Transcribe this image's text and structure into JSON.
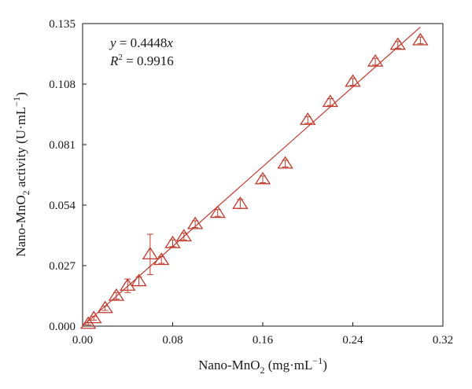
{
  "chart_data": {
    "type": "scatter",
    "title": "",
    "xlabel_parts": [
      "Nano-MnO",
      "2",
      " (mg·mL",
      "−1",
      ")"
    ],
    "ylabel_parts": [
      "Nano-MnO",
      "2",
      " activity (U·mL",
      "−1",
      ")"
    ],
    "xlim": [
      0.0,
      0.32
    ],
    "ylim": [
      0.0,
      0.135
    ],
    "xticks": [
      0.0,
      0.08,
      0.16,
      0.24,
      0.32
    ],
    "xtick_labels": [
      "0.00",
      "0.08",
      "0.16",
      "0.24",
      "0.32"
    ],
    "yticks": [
      0.0,
      0.027,
      0.054,
      0.081,
      0.108,
      0.135
    ],
    "ytick_labels": [
      "0.000",
      "0.027",
      "0.054",
      "0.081",
      "0.108",
      "0.135"
    ],
    "grid": false,
    "legend": "none",
    "marker": "open-triangle",
    "color": "#c0392b",
    "points": [
      {
        "x": 0.005,
        "y": 0.001,
        "err": 0.0005
      },
      {
        "x": 0.01,
        "y": 0.0035,
        "err": 0.0008
      },
      {
        "x": 0.02,
        "y": 0.008,
        "err": 0.001
      },
      {
        "x": 0.03,
        "y": 0.0135,
        "err": 0.0015
      },
      {
        "x": 0.04,
        "y": 0.018,
        "err": 0.003
      },
      {
        "x": 0.05,
        "y": 0.02,
        "err": 0.002
      },
      {
        "x": 0.06,
        "y": 0.032,
        "err": 0.009
      },
      {
        "x": 0.07,
        "y": 0.0295,
        "err": 0.0015
      },
      {
        "x": 0.08,
        "y": 0.037,
        "err": 0.0015
      },
      {
        "x": 0.09,
        "y": 0.04,
        "err": 0.0015
      },
      {
        "x": 0.1,
        "y": 0.0455,
        "err": 0.0015
      },
      {
        "x": 0.12,
        "y": 0.0505,
        "err": 0.0015
      },
      {
        "x": 0.14,
        "y": 0.0545,
        "err": 0.002
      },
      {
        "x": 0.16,
        "y": 0.0655,
        "err": 0.0015
      },
      {
        "x": 0.18,
        "y": 0.0725,
        "err": 0.0015
      },
      {
        "x": 0.2,
        "y": 0.092,
        "err": 0.0015
      },
      {
        "x": 0.22,
        "y": 0.1,
        "err": 0.0015
      },
      {
        "x": 0.24,
        "y": 0.109,
        "err": 0.0015
      },
      {
        "x": 0.26,
        "y": 0.118,
        "err": 0.0015
      },
      {
        "x": 0.28,
        "y": 0.1255,
        "err": 0.0015
      },
      {
        "x": 0.3,
        "y": 0.1275,
        "err": 0.0015
      }
    ],
    "fit_line": {
      "slope": 0.4448,
      "x_range": [
        0.0,
        0.3
      ]
    },
    "annotations": {
      "eq_var": "y",
      "eq_rhs_prefix": " = 0.4448",
      "eq_rhs_var": "x",
      "r2_base": "R",
      "r2_sup": "2",
      "r2_value": " = 0.9916"
    }
  }
}
